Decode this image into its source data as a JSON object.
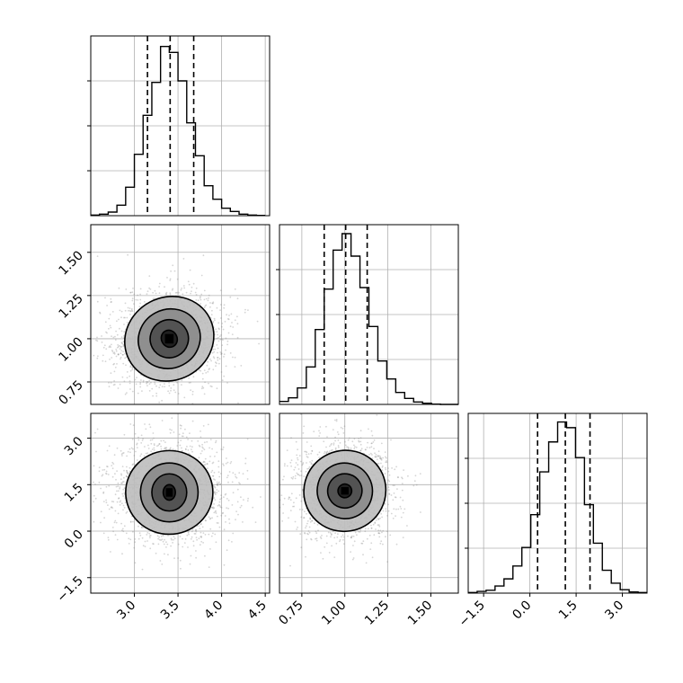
{
  "chart_data": {
    "type": "corner",
    "parameters": [
      {
        "index": 0,
        "xlim": [
          2.5,
          4.55
        ],
        "ticks": [
          3.0,
          3.5,
          4.0,
          4.5
        ],
        "tick_labels": [
          "3.0",
          "3.5",
          "4.0",
          "4.5"
        ]
      },
      {
        "index": 1,
        "xlim": [
          0.62,
          1.66
        ],
        "ticks": [
          0.75,
          1.0,
          1.25,
          1.5
        ],
        "tick_labels": [
          "0.75",
          "1.00",
          "1.25",
          "1.50"
        ]
      },
      {
        "index": 2,
        "xlim": [
          -2.0,
          3.8
        ],
        "ticks": [
          -1.5,
          0.0,
          1.5,
          3.0
        ],
        "tick_labels": [
          "−1.5",
          "0.0",
          "1.5",
          "3.0"
        ]
      }
    ],
    "histograms": [
      {
        "param": 0,
        "bin_edges": [
          2.5,
          2.6,
          2.7,
          2.8,
          2.9,
          3.0,
          3.1,
          3.2,
          3.3,
          3.4,
          3.5,
          3.6,
          3.7,
          3.8,
          3.9,
          4.0,
          4.1,
          4.2,
          4.3,
          4.4,
          4.5
        ],
        "counts": [
          2,
          5,
          12,
          35,
          95,
          205,
          335,
          445,
          565,
          545,
          450,
          310,
          200,
          100,
          55,
          25,
          14,
          5,
          2,
          1
        ],
        "quantiles": [
          3.15,
          3.41,
          3.68
        ],
        "ylim": [
          0,
          600
        ]
      },
      {
        "param": 1,
        "bin_edges": [
          0.62,
          0.672,
          0.724,
          0.776,
          0.828,
          0.88,
          0.932,
          0.984,
          1.036,
          1.088,
          1.14,
          1.192,
          1.244,
          1.296,
          1.348,
          1.4,
          1.452,
          1.504,
          1.556,
          1.608,
          1.66
        ],
        "counts": [
          10,
          22,
          55,
          125,
          250,
          385,
          515,
          570,
          495,
          390,
          260,
          145,
          85,
          40,
          20,
          8,
          4,
          1,
          0,
          0
        ],
        "quantiles": [
          0.88,
          1.005,
          1.13
        ],
        "ylim": [
          0,
          600
        ]
      },
      {
        "param": 2,
        "bin_edges": [
          -2.0,
          -1.71,
          -1.42,
          -1.13,
          -0.84,
          -0.55,
          -0.26,
          0.03,
          0.32,
          0.61,
          0.9,
          1.19,
          1.48,
          1.77,
          2.06,
          2.35,
          2.64,
          2.93,
          3.22,
          3.51,
          3.8
        ],
        "counts": [
          2,
          6,
          10,
          25,
          50,
          95,
          160,
          275,
          425,
          530,
          600,
          580,
          475,
          310,
          175,
          80,
          35,
          12,
          4,
          2
        ],
        "quantiles": [
          0.25,
          1.15,
          1.95
        ],
        "ylim": [
          0,
          630
        ]
      }
    ],
    "joint": [
      {
        "x_param": 0,
        "y_param": 1,
        "center": [
          3.4,
          1.0
        ],
        "contour_radii": [
          [
            0.09,
            0.05
          ],
          [
            0.22,
            0.11
          ],
          [
            0.36,
            0.17
          ],
          [
            0.52,
            0.24
          ]
        ],
        "scatter_spread": [
          0.3,
          0.13
        ],
        "rotation_deg": -28
      },
      {
        "x_param": 0,
        "y_param": 2,
        "center": [
          3.4,
          1.25
        ],
        "contour_radii": [
          [
            0.07,
            0.25
          ],
          [
            0.2,
            0.6
          ],
          [
            0.33,
            0.95
          ],
          [
            0.5,
            1.35
          ]
        ],
        "scatter_spread": [
          0.3,
          0.72
        ],
        "rotation_deg": 0
      },
      {
        "x_param": 1,
        "y_param": 2,
        "center": [
          1.0,
          1.3
        ],
        "contour_radii": [
          [
            0.04,
            0.22
          ],
          [
            0.1,
            0.55
          ],
          [
            0.16,
            0.9
          ],
          [
            0.24,
            1.3
          ]
        ],
        "scatter_spread": [
          0.13,
          0.75
        ],
        "rotation_deg": -30
      }
    ],
    "grid": true,
    "colors": {
      "line": "#000000",
      "grid": "#b0b0b0",
      "scatter": "#888888"
    }
  }
}
